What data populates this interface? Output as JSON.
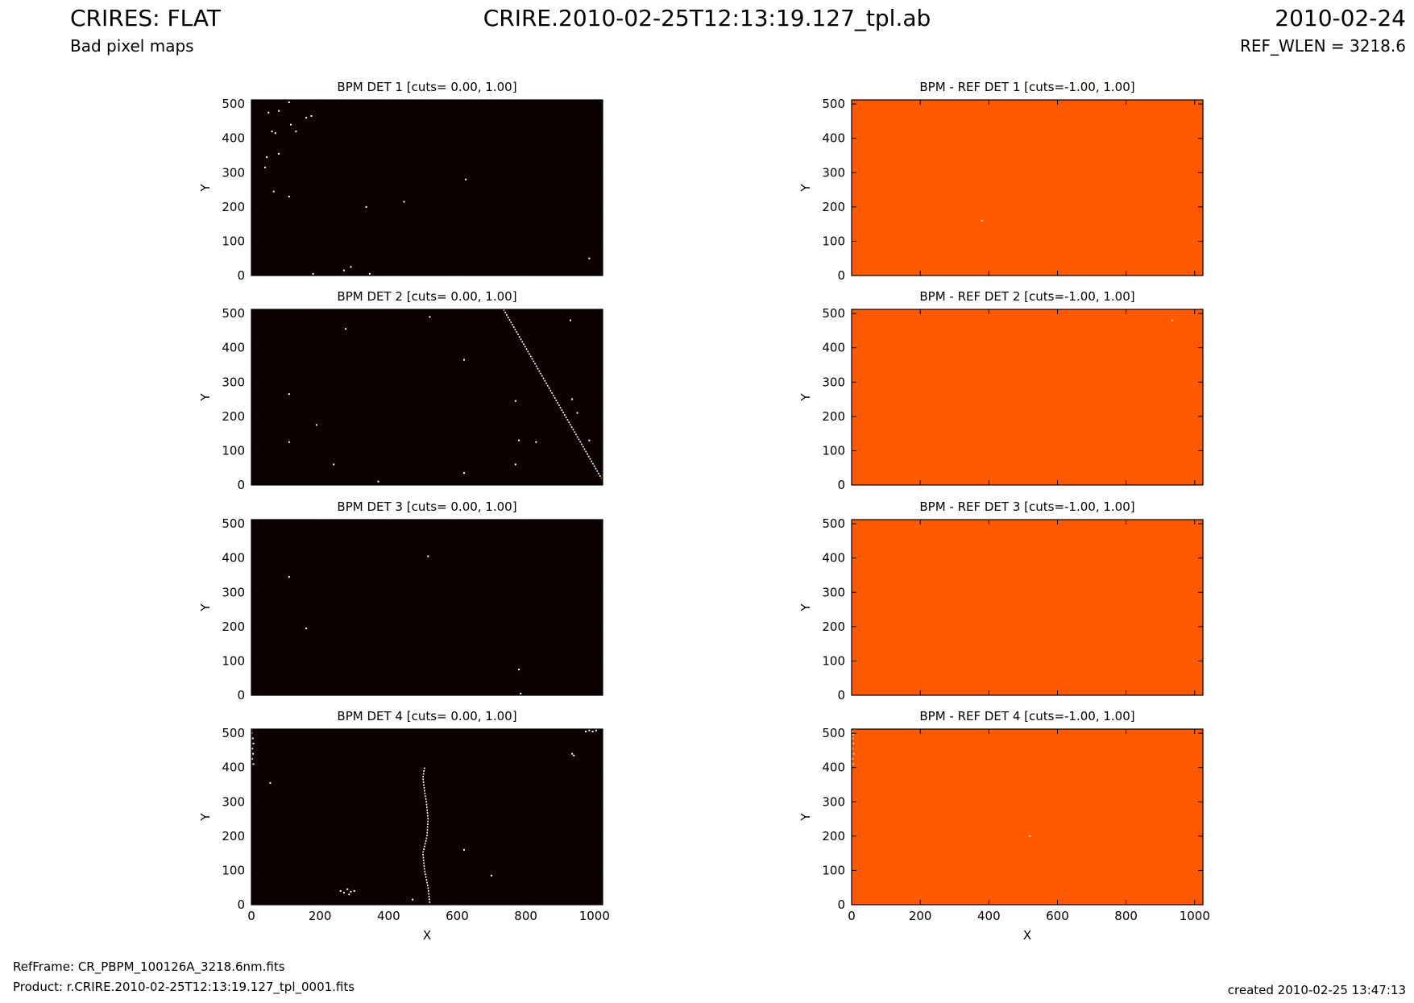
{
  "header": {
    "title": "CRIRES: FLAT",
    "subtitle": "Bad pixel maps",
    "center_title": "CRIRE.2010-02-25T12:13:19.127_tpl.ab",
    "date": "2010-02-24",
    "ref_wlen": "REF_WLEN = 3218.6"
  },
  "footer": {
    "refframe": "RefFrame: CR_PBPM_100126A_3218.6nm.fits",
    "product": "Product: r.CRIRE.2010-02-25T12:13:19.127_tpl_0001.fits",
    "created": "created 2010-02-25 13:47:13"
  },
  "colors": {
    "bpm_background": "#0c0202",
    "bad_pixel": "#ffffff",
    "diff_background": "#ff5a00"
  },
  "chart_data": [
    {
      "type": "heatmap",
      "title": "BPM DET 1 [cuts= 0.00, 1.00]",
      "xlabel": "",
      "ylabel": "Y",
      "xlim": [
        0,
        1024
      ],
      "ylim": [
        0,
        512
      ],
      "background": "#0c0202",
      "x_ticks": [],
      "y_ticks": [
        0,
        100,
        200,
        300,
        400,
        500
      ],
      "bad_pixels": [
        [
          50,
          475
        ],
        [
          80,
          480
        ],
        [
          110,
          505
        ],
        [
          60,
          420
        ],
        [
          70,
          415
        ],
        [
          130,
          420
        ],
        [
          115,
          440
        ],
        [
          160,
          460
        ],
        [
          175,
          465
        ],
        [
          45,
          345
        ],
        [
          80,
          355
        ],
        [
          40,
          315
        ],
        [
          65,
          245
        ],
        [
          110,
          230
        ],
        [
          335,
          200
        ],
        [
          445,
          215
        ],
        [
          625,
          280
        ],
        [
          180,
          5
        ],
        [
          270,
          15
        ],
        [
          290,
          25
        ],
        [
          345,
          5
        ],
        [
          985,
          50
        ]
      ]
    },
    {
      "type": "heatmap",
      "title": "BPM - REF DET 1 [cuts=-1.00, 1.00]",
      "xlabel": "",
      "ylabel": "Y",
      "xlim": [
        0,
        1024
      ],
      "ylim": [
        0,
        512
      ],
      "background": "#ff5a00",
      "x_ticks": [],
      "y_ticks": [
        0,
        100,
        200,
        300,
        400,
        500
      ],
      "diff_pixels": [
        [
          380,
          160
        ]
      ]
    },
    {
      "type": "heatmap",
      "title": "BPM DET 2 [cuts= 0.00, 1.00]",
      "xlabel": "",
      "ylabel": "Y",
      "xlim": [
        0,
        1024
      ],
      "ylim": [
        0,
        512
      ],
      "background": "#0c0202",
      "x_ticks": [],
      "y_ticks": [
        0,
        100,
        200,
        300,
        400,
        500
      ],
      "bad_line": [
        [
          735,
          512
        ],
        [
          1020,
          20
        ]
      ],
      "bad_pixels": [
        [
          275,
          455
        ],
        [
          520,
          490
        ],
        [
          620,
          365
        ],
        [
          930,
          480
        ],
        [
          110,
          265
        ],
        [
          190,
          175
        ],
        [
          110,
          125
        ],
        [
          240,
          60
        ],
        [
          370,
          10
        ],
        [
          770,
          245
        ],
        [
          935,
          250
        ],
        [
          950,
          210
        ],
        [
          780,
          130
        ],
        [
          830,
          125
        ],
        [
          620,
          35
        ],
        [
          770,
          60
        ],
        [
          985,
          130
        ]
      ]
    },
    {
      "type": "heatmap",
      "title": "BPM - REF DET 2 [cuts=-1.00, 1.00]",
      "xlabel": "",
      "ylabel": "Y",
      "xlim": [
        0,
        1024
      ],
      "ylim": [
        0,
        512
      ],
      "background": "#ff5a00",
      "x_ticks": [],
      "y_ticks": [
        0,
        100,
        200,
        300,
        400,
        500
      ],
      "diff_pixels": [
        [
          935,
          480
        ]
      ]
    },
    {
      "type": "heatmap",
      "title": "BPM DET 3 [cuts= 0.00, 1.00]",
      "xlabel": "",
      "ylabel": "Y",
      "xlim": [
        0,
        1024
      ],
      "ylim": [
        0,
        512
      ],
      "background": "#0c0202",
      "x_ticks": [],
      "y_ticks": [
        0,
        100,
        200,
        300,
        400,
        500
      ],
      "bad_pixels": [
        [
          515,
          405
        ],
        [
          110,
          345
        ],
        [
          160,
          195
        ],
        [
          780,
          75
        ],
        [
          785,
          5
        ]
      ]
    },
    {
      "type": "heatmap",
      "title": "BPM - REF DET 3 [cuts=-1.00, 1.00]",
      "xlabel": "",
      "ylabel": "Y",
      "xlim": [
        0,
        1024
      ],
      "ylim": [
        0,
        512
      ],
      "background": "#ff5a00",
      "x_ticks": [],
      "y_ticks": [
        0,
        100,
        200,
        300,
        400,
        500
      ],
      "diff_pixels": []
    },
    {
      "type": "heatmap",
      "title": "BPM DET 4 [cuts= 0.00, 1.00]",
      "xlabel": "X",
      "ylabel": "Y",
      "xlim": [
        0,
        1024
      ],
      "ylim": [
        0,
        512
      ],
      "background": "#0c0202",
      "x_ticks": [
        0,
        200,
        400,
        600,
        800,
        1000
      ],
      "y_ticks": [
        0,
        100,
        200,
        300,
        400,
        500
      ],
      "bad_curve": [
        [
          505,
          400
        ],
        [
          500,
          370
        ],
        [
          505,
          330
        ],
        [
          510,
          300
        ],
        [
          515,
          250
        ],
        [
          512,
          200
        ],
        [
          500,
          150
        ],
        [
          505,
          100
        ],
        [
          515,
          50
        ],
        [
          520,
          5
        ]
      ],
      "bad_pixels": [
        [
          2,
          500
        ],
        [
          4,
          485
        ],
        [
          6,
          470
        ],
        [
          3,
          455
        ],
        [
          5,
          440
        ],
        [
          2,
          425
        ],
        [
          6,
          410
        ],
        [
          55,
          355
        ],
        [
          935,
          440
        ],
        [
          940,
          435
        ],
        [
          975,
          505
        ],
        [
          985,
          508
        ],
        [
          995,
          505
        ],
        [
          1005,
          508
        ],
        [
          260,
          40
        ],
        [
          270,
          35
        ],
        [
          280,
          45
        ],
        [
          290,
          38
        ],
        [
          300,
          40
        ],
        [
          285,
          30
        ],
        [
          470,
          15
        ],
        [
          620,
          160
        ],
        [
          700,
          85
        ]
      ]
    },
    {
      "type": "heatmap",
      "title": "BPM - REF DET 4 [cuts=-1.00, 1.00]",
      "xlabel": "X",
      "ylabel": "Y",
      "xlim": [
        0,
        1024
      ],
      "ylim": [
        0,
        512
      ],
      "background": "#ff5a00",
      "x_ticks": [
        0,
        200,
        400,
        600,
        800,
        1000
      ],
      "y_ticks": [
        0,
        100,
        200,
        300,
        400,
        500
      ],
      "diff_pixels": [
        [
          2,
          505
        ],
        [
          4,
          495
        ],
        [
          3,
          485
        ],
        [
          5,
          470
        ],
        [
          2,
          455
        ],
        [
          6,
          440
        ],
        [
          3,
          425
        ],
        [
          4,
          410
        ],
        [
          520,
          200
        ]
      ]
    }
  ]
}
